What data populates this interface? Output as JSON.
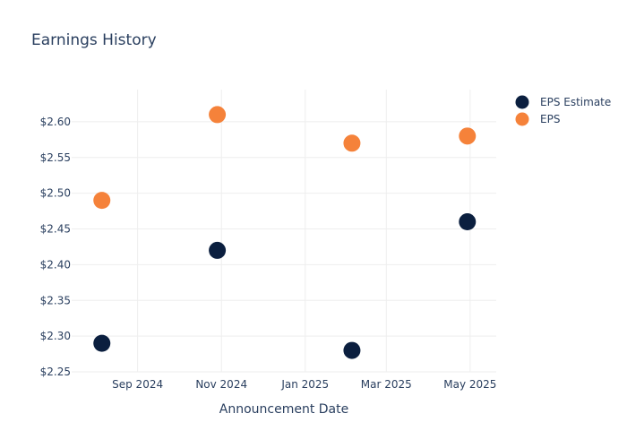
{
  "chart_data": {
    "type": "scatter",
    "title": "Earnings History",
    "xlabel": "Announcement Date",
    "ylabel": "",
    "x_ticks": [
      {
        "date": "2024-09-01",
        "label": "Sep 2024"
      },
      {
        "date": "2024-11-01",
        "label": "Nov 2024"
      },
      {
        "date": "2025-01-01",
        "label": "Jan 2025"
      },
      {
        "date": "2025-03-01",
        "label": "Mar 2025"
      },
      {
        "date": "2025-05-01",
        "label": "May 2025"
      }
    ],
    "xlim": [
      "2024-07-15",
      "2025-05-20"
    ],
    "y_ticks": [
      "$2.25",
      "$2.30",
      "$2.35",
      "$2.40",
      "$2.45",
      "$2.50",
      "$2.55",
      "$2.60"
    ],
    "y_tick_values": [
      2.25,
      2.3,
      2.35,
      2.4,
      2.45,
      2.5,
      2.55,
      2.6
    ],
    "ylim": [
      2.25,
      2.645
    ],
    "grid": true,
    "legend_position": "top-right",
    "series": [
      {
        "name": "EPS Estimate",
        "color": "#0b1f3f",
        "points": [
          {
            "x": "2024-08-06",
            "y": 2.29
          },
          {
            "x": "2024-10-29",
            "y": 2.42
          },
          {
            "x": "2025-02-04",
            "y": 2.28
          },
          {
            "x": "2025-04-29",
            "y": 2.46
          }
        ]
      },
      {
        "name": "EPS",
        "color": "#f5823a",
        "points": [
          {
            "x": "2024-08-06",
            "y": 2.49
          },
          {
            "x": "2024-10-29",
            "y": 2.61
          },
          {
            "x": "2025-02-04",
            "y": 2.57
          },
          {
            "x": "2025-04-29",
            "y": 2.58
          }
        ]
      }
    ]
  }
}
